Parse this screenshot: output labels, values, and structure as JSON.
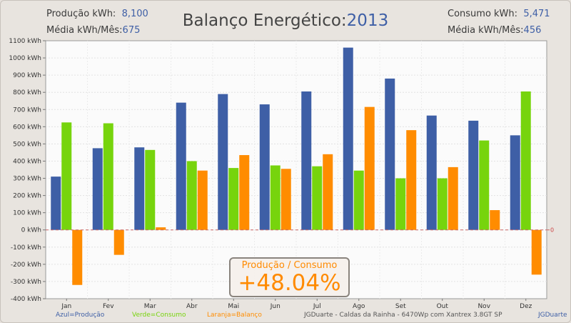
{
  "header": {
    "production_label": "Produção kWh:",
    "production_value": "8,100",
    "prod_avg_label": "Média kWh/Mês:",
    "prod_avg_value": "675",
    "title": "Balanço Energético:",
    "year": "2013",
    "consumption_label": "Consumo kWh:",
    "consumption_value": "5,471",
    "cons_avg_label": "Média kWh/Mês:",
    "cons_avg_value": "456"
  },
  "ratio": {
    "label": "Produção / Consumo",
    "value": "+48.04%"
  },
  "legend": {
    "blue": "Azul=Produção",
    "green": "Verde=Consumo",
    "orange": "Laranja=Balanço",
    "info": "JGDuarte  -  Caldas da Rainha  -  6470Wp com Xantrex 3.8GT SP",
    "author": "JGDuarte"
  },
  "chart_data": {
    "type": "bar",
    "title": "Balanço Energético: 2013",
    "categories": [
      "Jan",
      "Fev",
      "Mar",
      "Abr",
      "Mai",
      "Jun",
      "Jul",
      "Ago",
      "Set",
      "Out",
      "Nov",
      "Dez"
    ],
    "series": [
      {
        "name": "Produção",
        "color": "#3e5fa6",
        "values": [
          310,
          475,
          480,
          740,
          790,
          730,
          805,
          1060,
          880,
          665,
          635,
          550
        ]
      },
      {
        "name": "Consumo",
        "color": "#77d40d",
        "values": [
          625,
          620,
          465,
          400,
          360,
          375,
          370,
          345,
          300,
          300,
          520,
          805
        ]
      },
      {
        "name": "Balanço",
        "color": "#ff8c00",
        "values": [
          -320,
          -145,
          15,
          345,
          435,
          355,
          440,
          715,
          580,
          365,
          115,
          -260
        ]
      }
    ],
    "ylim": [
      -400,
      1100
    ],
    "ytick_step": 100,
    "yunit": " kWh",
    "right_axis_label": "0",
    "grid": true
  }
}
